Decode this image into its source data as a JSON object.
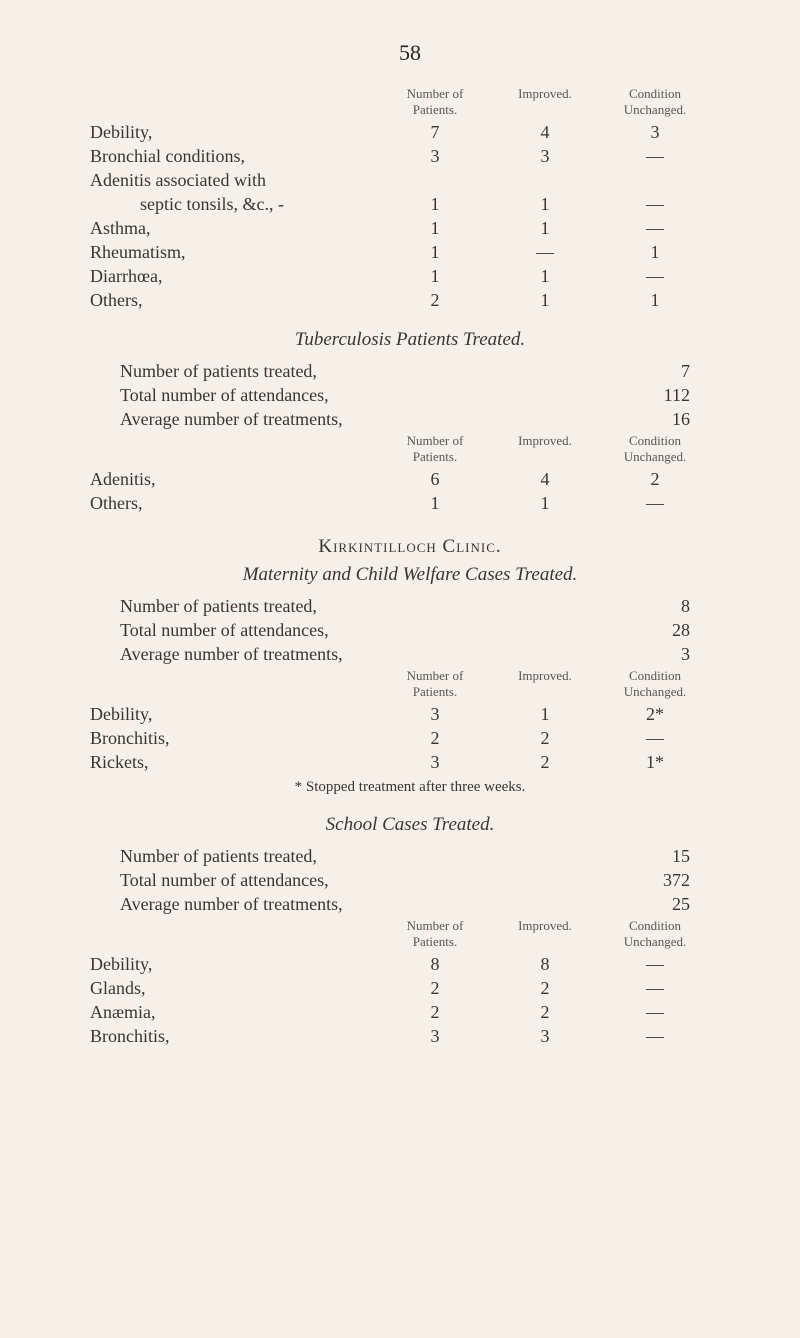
{
  "page_number": "58",
  "headers": {
    "number_of_patients": "Number of\nPatients.",
    "improved": "Improved.",
    "condition_unchanged": "Condition\nUnchanged."
  },
  "table1": {
    "rows": [
      {
        "label": "Debility,",
        "num": "7",
        "imp": "4",
        "unc": "3"
      },
      {
        "label": "Bronchial conditions,",
        "num": "3",
        "imp": "3",
        "unc": "—"
      },
      {
        "label": "Adenitis associated with",
        "num": "",
        "imp": "",
        "unc": ""
      },
      {
        "label": "septic tonsils, &c., -",
        "num": "1",
        "imp": "1",
        "unc": "—",
        "indent": true
      },
      {
        "label": "Asthma,",
        "num": "1",
        "imp": "1",
        "unc": "—"
      },
      {
        "label": "Rheumatism,",
        "num": "1",
        "imp": "—",
        "unc": "1"
      },
      {
        "label": "Diarrhœa,",
        "num": "1",
        "imp": "1",
        "unc": "—"
      },
      {
        "label": "Others,",
        "num": "2",
        "imp": "1",
        "unc": "1"
      }
    ]
  },
  "tuberculosis": {
    "title": "Tuberculosis Patients Treated.",
    "summary": [
      {
        "label": "Number of patients treated,",
        "val": "7"
      },
      {
        "label": "Total number of attendances,",
        "val": "112"
      },
      {
        "label": "Average number of treatments,",
        "val": "16"
      }
    ],
    "rows": [
      {
        "label": "Adenitis,",
        "num": "6",
        "imp": "4",
        "unc": "2"
      },
      {
        "label": "Others,",
        "num": "1",
        "imp": "1",
        "unc": "—"
      }
    ]
  },
  "kirkintilloch": {
    "title": "Kirkintilloch Clinic.",
    "sub": "Maternity and Child Welfare Cases Treated.",
    "summary": [
      {
        "label": "Number of patients treated,",
        "val": "8"
      },
      {
        "label": "Total number of attendances,",
        "val": "28"
      },
      {
        "label": "Average number of treatments,",
        "val": "3"
      }
    ],
    "rows": [
      {
        "label": "Debility,",
        "num": "3",
        "imp": "1",
        "unc": "2*"
      },
      {
        "label": "Bronchitis,",
        "num": "2",
        "imp": "2",
        "unc": "—"
      },
      {
        "label": "Rickets,",
        "num": "3",
        "imp": "2",
        "unc": "1*"
      }
    ],
    "footnote": "* Stopped treatment after three weeks."
  },
  "school": {
    "title": "School Cases Treated.",
    "summary": [
      {
        "label": "Number of patients treated,",
        "val": "15"
      },
      {
        "label": "Total number of attendances,",
        "val": "372"
      },
      {
        "label": "Average number of treatments,",
        "val": "25"
      }
    ],
    "rows": [
      {
        "label": "Debility,",
        "num": "8",
        "imp": "8",
        "unc": "—"
      },
      {
        "label": "Glands,",
        "num": "2",
        "imp": "2",
        "unc": "—"
      },
      {
        "label": "Anæmia,",
        "num": "2",
        "imp": "2",
        "unc": "—"
      },
      {
        "label": "Bronchitis,",
        "num": "3",
        "imp": "3",
        "unc": "—"
      }
    ]
  },
  "colors": {
    "background": "#f5f0e8",
    "text": "#3a3530",
    "header_text": "#5a5550"
  },
  "typography": {
    "body_fontsize": 18,
    "header_fontsize": 13,
    "page_number_fontsize": 22,
    "section_title_fontsize": 19
  }
}
